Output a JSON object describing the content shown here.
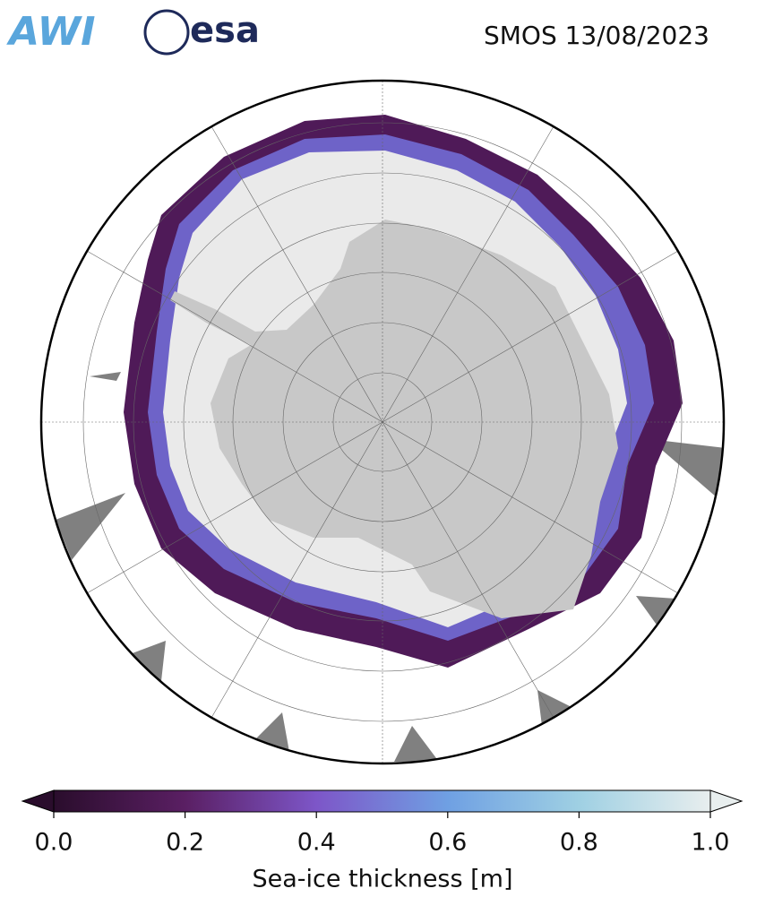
{
  "header": {
    "logos": [
      "AWI",
      "esa"
    ],
    "title": "SMOS 13/08/2023"
  },
  "colorbar": {
    "label": "Sea-ice thickness [m]",
    "lim": [
      0,
      1
    ],
    "ticks": [
      {
        "value": 0,
        "label": "0.0"
      },
      {
        "value": 0.2,
        "label": "0.2"
      },
      {
        "value": 0.4,
        "label": "0.4"
      },
      {
        "value": 0.6,
        "label": "0.6"
      },
      {
        "value": 0.8,
        "label": "0.8"
      },
      {
        "value": 1,
        "label": "1.0"
      }
    ],
    "colors": [
      "#2a0d2c",
      "#5a1f63",
      "#7d56c8",
      "#6fa0e3",
      "#9fd0e3",
      "#e8eeee"
    ],
    "extend": "both"
  }
}
